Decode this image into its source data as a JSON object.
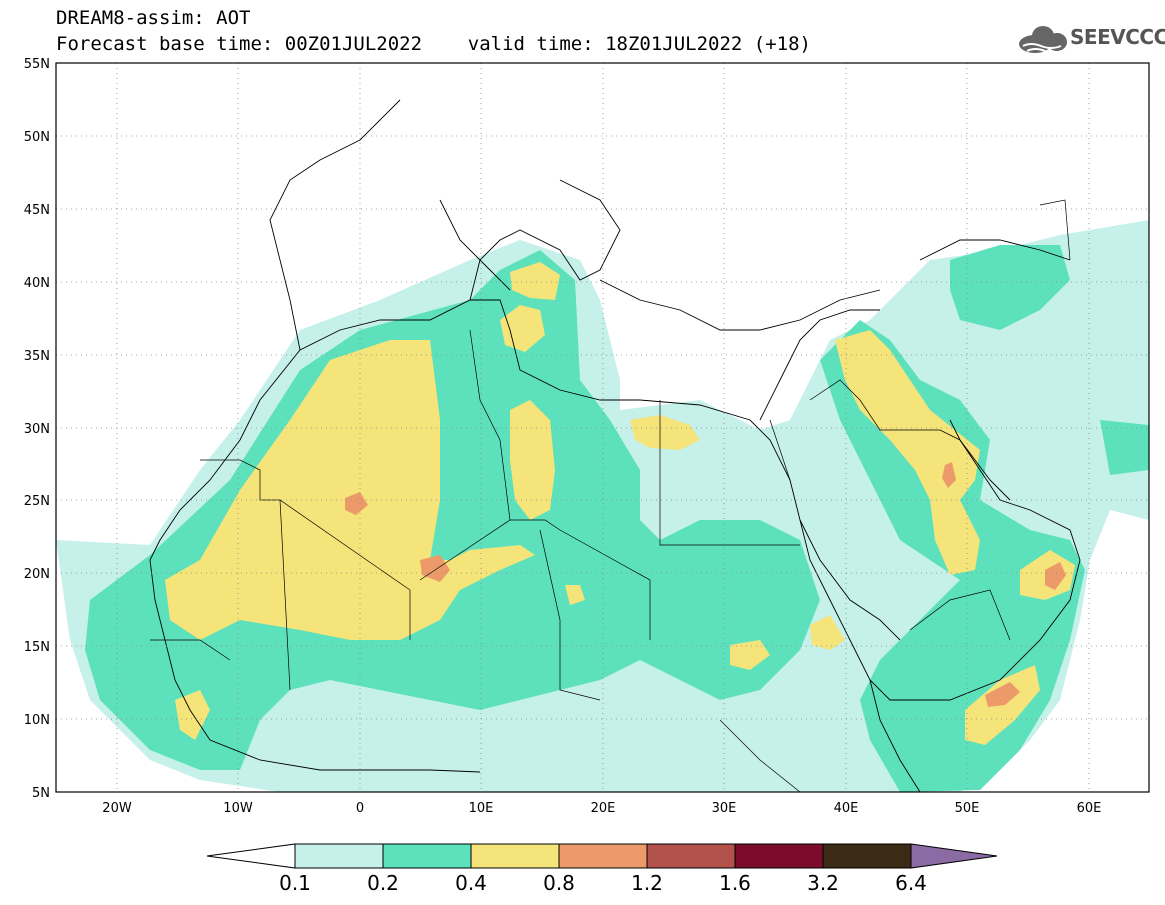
{
  "title": {
    "line1": "DREAM8-assim: AOT",
    "line2": "Forecast base time: 00Z01JUL2022    valid time: 18Z01JUL2022 (+18)"
  },
  "logo": {
    "text": "SEEVCCC",
    "icon": "cloud-icon"
  },
  "axes": {
    "lat_labels": [
      "55N",
      "50N",
      "45N",
      "40N",
      "35N",
      "30N",
      "25N",
      "20N",
      "15N",
      "10N",
      "5N"
    ],
    "lon_labels": [
      "20W",
      "10W",
      "0",
      "10E",
      "20E",
      "30E",
      "40E",
      "50E",
      "60E"
    ],
    "lat_range": [
      5,
      55
    ],
    "lon_range": [
      -25,
      65
    ],
    "grid": "dotted"
  },
  "colorbar": {
    "labels": [
      "0.1",
      "0.2",
      "0.4",
      "0.8",
      "1.2",
      "1.6",
      "3.2",
      "6.4"
    ],
    "colors": [
      "#c6f0ea",
      "#5de1bd",
      "#f5e47a",
      "#ec9a6a",
      "#b3524a",
      "#7c0c2b",
      "#3b2a16"
    ],
    "over_color": "#8c6aa4",
    "under_color": "#ffffff"
  },
  "colors": {
    "level1": "#c6f0ea",
    "level2": "#5de1bd",
    "level3": "#f5e47a",
    "level4": "#ec9a6a",
    "level5": "#b3524a"
  }
}
